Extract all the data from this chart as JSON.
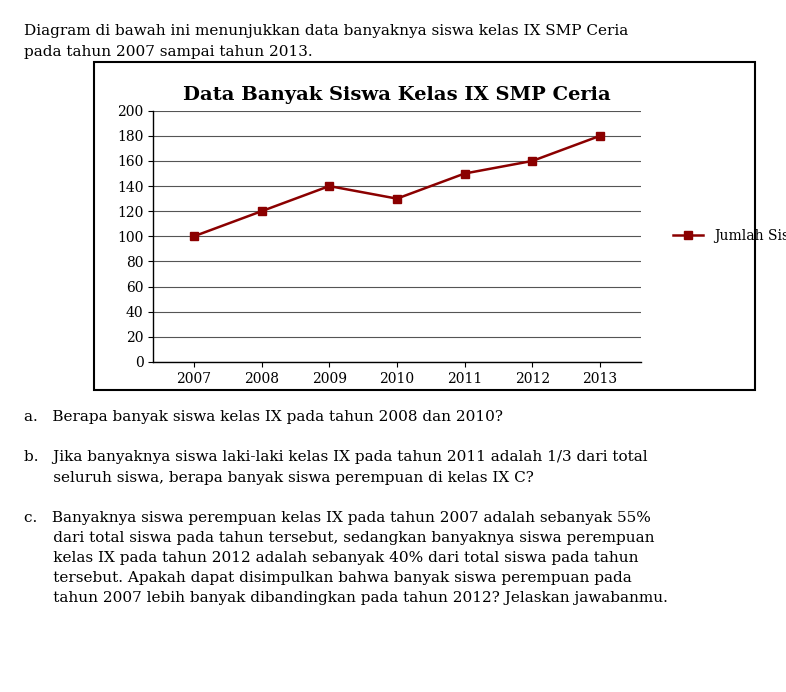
{
  "title": "Data Banyak Siswa Kelas IX SMP Ceria",
  "years": [
    2007,
    2008,
    2009,
    2010,
    2011,
    2012,
    2013
  ],
  "values": [
    100,
    120,
    140,
    130,
    150,
    160,
    180
  ],
  "line_color": "#8B0000",
  "marker_style": "s",
  "marker_size": 6,
  "legend_label": "Jumlah Siswa",
  "ylim": [
    0,
    200
  ],
  "yticks": [
    0,
    20,
    40,
    60,
    80,
    100,
    120,
    140,
    160,
    180,
    200
  ],
  "grid_color": "#555555",
  "background_color": "#ffffff",
  "title_fontsize": 14,
  "tick_fontsize": 10,
  "legend_fontsize": 10,
  "text_fontsize": 11,
  "header_line1": "Diagram di bawah ini menunjukkan data banyaknya siswa kelas IX SMP Ceria",
  "header_line2": "pada tahun 2007 sampai tahun 2013.",
  "qa": "a.   Berapa banyak siswa kelas IX pada tahun 2008 dan 2010?",
  "qb1": "b.   Jika banyaknya siswa laki-laki kelas IX pada tahun 2011 adalah 1/3 dari total",
  "qb2": "      seluruh siswa, berapa banyak siswa perempuan di kelas IX C?",
  "qc1": "c.   Banyaknya siswa perempuan kelas IX pada tahun 2007 adalah sebanyak 55%",
  "qc2": "      dari total siswa pada tahun tersebut, sedangkan banyaknya siswa perempuan",
  "qc3": "      kelas IX pada tahun 2012 adalah sebanyak 40% dari total siswa pada tahun",
  "qc4": "      tersebut. Apakah dapat disimpulkan bahwa banyak siswa perempuan pada",
  "qc5": "      tahun 2007 lebih banyak dibandingkan pada tahun 2012? Jelaskan jawabanmu."
}
